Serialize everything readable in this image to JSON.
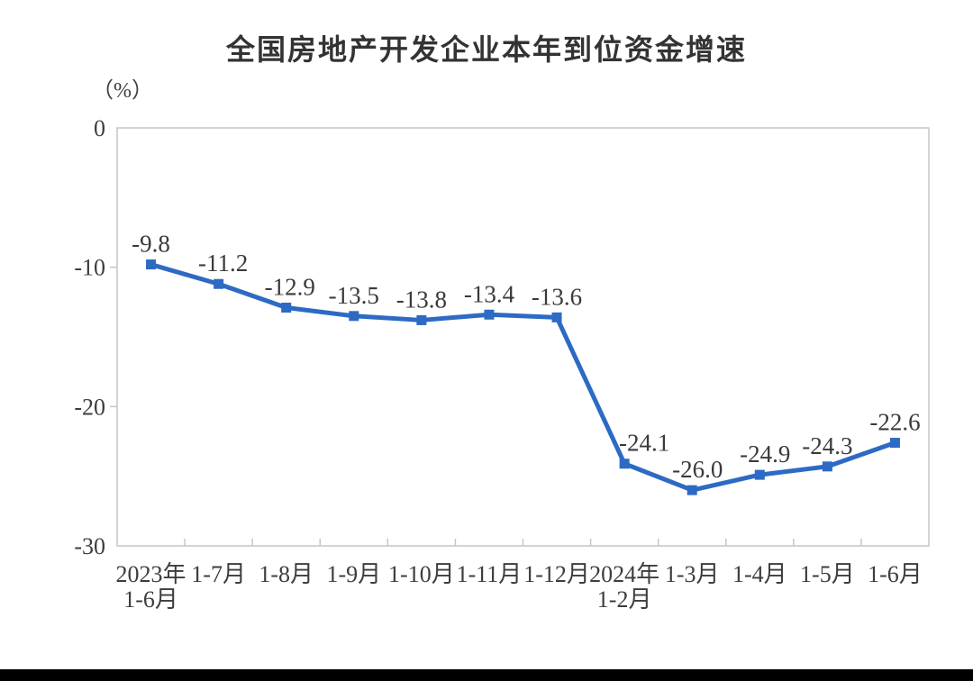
{
  "chart_data": {
    "type": "line",
    "title": "全国房地产开发企业本年到位资金增速",
    "unit_label": "（%）",
    "categories": [
      "2023年\n1-6月",
      "1-7月",
      "1-8月",
      "1-9月",
      "1-10月",
      "1-11月",
      "1-12月",
      "2024年\n1-2月",
      "1-3月",
      "1-4月",
      "1-5月",
      "1-6月"
    ],
    "values": [
      -9.8,
      -11.2,
      -12.9,
      -13.5,
      -13.8,
      -13.4,
      -13.6,
      -24.1,
      -26.0,
      -24.9,
      -24.3,
      -22.6
    ],
    "data_labels": [
      "-9.8",
      "-11.2",
      "-12.9",
      "-13.5",
      "-13.8",
      "-13.4",
      "-13.6",
      "-24.1",
      "-26.0",
      "-24.9",
      "-24.3",
      "-22.6"
    ],
    "yticks": [
      0,
      -10,
      -20,
      -30
    ],
    "ylim": [
      -30,
      0
    ],
    "grid": false,
    "legend": null,
    "marker": "square",
    "colors": {
      "line": "#2d6ac4",
      "axis": "#c6c6c6",
      "title_text": "#333333",
      "label_text": "#3a3a3a",
      "divider": "#000000"
    }
  }
}
